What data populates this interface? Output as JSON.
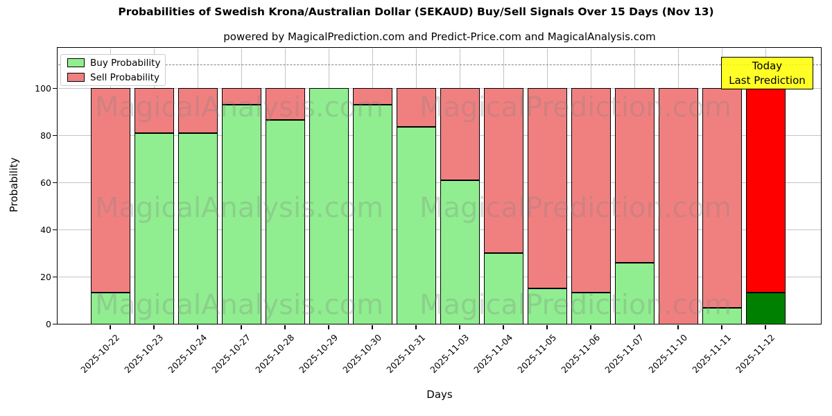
{
  "title": "Probabilities of Swedish Krona/Australian Dollar (SEKAUD) Buy/Sell Signals Over 15 Days (Nov 13)",
  "subtitle": "powered by MagicalPrediction.com and Predict-Price.com and MagicalAnalysis.com",
  "legend": {
    "items": [
      {
        "label": "Buy Probability",
        "color": "#90EE90"
      },
      {
        "label": "Sell Probability",
        "color": "#F08080"
      }
    ]
  },
  "annotation_box": {
    "lines": [
      "Today",
      "Last Prediction"
    ],
    "background": "#FFFF00",
    "border_color": "#000000"
  },
  "watermarks": [
    "MagicalAnalysis.com",
    "MagicalPrediction.com"
  ],
  "chart_data": {
    "type": "bar",
    "stacked": true,
    "title": "Probabilities of Swedish Krona/Australian Dollar (SEKAUD) Buy/Sell Signals Over 15 Days (Nov 13)",
    "xlabel": "Days",
    "ylabel": "Probability",
    "categories": [
      "2025-10-22",
      "2025-10-23",
      "2025-10-24",
      "2025-10-27",
      "2025-10-28",
      "2025-10-29",
      "2025-10-30",
      "2025-10-31",
      "2025-11-03",
      "2025-11-04",
      "2025-11-05",
      "2025-11-06",
      "2025-11-07",
      "2025-11-10",
      "2025-11-11",
      "2025-11-12"
    ],
    "series": [
      {
        "name": "Buy Probability",
        "color": "#90EE90",
        "values": [
          13.5,
          81,
          81,
          93,
          86.5,
          100,
          93,
          83.5,
          61,
          30,
          15,
          13.5,
          26,
          0,
          7,
          13.5
        ]
      },
      {
        "name": "Sell Probability",
        "color": "#F08080",
        "values": [
          86.5,
          19,
          19,
          7,
          13.5,
          0,
          7,
          16.5,
          39,
          70,
          85,
          86.5,
          74,
          100,
          93,
          86.5
        ]
      }
    ],
    "highlight": {
      "index": 15,
      "buy_color": "#008000",
      "sell_color": "#FF0000",
      "note": "Today / Last Prediction bar"
    },
    "yticks": [
      0,
      20,
      40,
      60,
      80,
      100
    ],
    "ylim": [
      0,
      117
    ],
    "dashed_line_y": 110,
    "grid": true,
    "legend_position": "upper left",
    "bar_edge_color": "#000000"
  }
}
